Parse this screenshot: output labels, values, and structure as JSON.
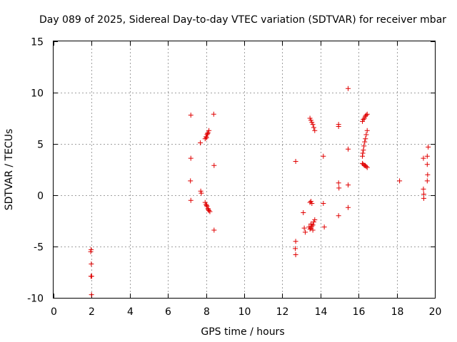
{
  "chart_data": {
    "type": "scatter",
    "title": "Day 089 of 2025, Sidereal Day-to-day VTEC variation (SDTVAR) for receiver mbar",
    "xlabel": "GPS time / hours",
    "ylabel": "SDTVAR / TECUs",
    "xlim": [
      0,
      20
    ],
    "ylim": [
      -10,
      15
    ],
    "xticks": [
      "0",
      "2",
      "4",
      "6",
      "8",
      "10",
      "12",
      "14",
      "16",
      "18",
      "20"
    ],
    "yticks": [
      "-10",
      "-5",
      "0",
      "5",
      "10",
      "15"
    ],
    "grid": true,
    "marker": "+",
    "color": "#e00000",
    "series": [
      {
        "name": "SDTVAR",
        "points": [
          [
            1.95,
            -5.5
          ],
          [
            1.97,
            -5.3
          ],
          [
            1.98,
            -6.7
          ],
          [
            1.96,
            -7.9
          ],
          [
            2.0,
            -7.9
          ],
          [
            1.99,
            -9.7
          ],
          [
            7.2,
            7.8
          ],
          [
            7.2,
            3.6
          ],
          [
            7.18,
            1.4
          ],
          [
            7.2,
            -0.5
          ],
          [
            7.7,
            5.1
          ],
          [
            7.72,
            0.4
          ],
          [
            7.75,
            0.2
          ],
          [
            7.95,
            5.5
          ],
          [
            8.0,
            5.7
          ],
          [
            8.05,
            5.9
          ],
          [
            8.1,
            6.1
          ],
          [
            8.15,
            6.3
          ],
          [
            8.02,
            5.6
          ],
          [
            8.08,
            6.0
          ],
          [
            7.95,
            -0.7
          ],
          [
            8.0,
            -0.9
          ],
          [
            8.05,
            -1.1
          ],
          [
            8.1,
            -1.3
          ],
          [
            8.15,
            -1.5
          ],
          [
            8.2,
            -1.6
          ],
          [
            8.03,
            -1.0
          ],
          [
            8.12,
            -1.4
          ],
          [
            8.4,
            7.9
          ],
          [
            8.42,
            2.9
          ],
          [
            8.42,
            -3.4
          ],
          [
            12.7,
            3.3
          ],
          [
            12.7,
            -4.5
          ],
          [
            12.68,
            -5.2
          ],
          [
            12.7,
            -5.8
          ],
          [
            13.1,
            -1.7
          ],
          [
            13.15,
            -3.2
          ],
          [
            13.2,
            -3.6
          ],
          [
            13.45,
            7.5
          ],
          [
            13.5,
            7.3
          ],
          [
            13.55,
            7.1
          ],
          [
            13.6,
            6.9
          ],
          [
            13.65,
            6.6
          ],
          [
            13.7,
            6.3
          ],
          [
            13.45,
            -0.7
          ],
          [
            13.5,
            -0.6
          ],
          [
            13.55,
            -0.8
          ],
          [
            13.4,
            -3.1
          ],
          [
            13.45,
            -3.3
          ],
          [
            13.5,
            -3.2
          ],
          [
            13.55,
            -3.0
          ],
          [
            13.6,
            -2.9
          ],
          [
            13.65,
            -2.6
          ],
          [
            13.7,
            -2.4
          ],
          [
            13.5,
            -2.8
          ],
          [
            13.6,
            -3.4
          ],
          [
            14.15,
            3.8
          ],
          [
            14.15,
            -0.8
          ],
          [
            14.2,
            -3.1
          ],
          [
            14.95,
            6.9
          ],
          [
            14.95,
            6.7
          ],
          [
            14.95,
            1.2
          ],
          [
            14.97,
            0.7
          ],
          [
            14.95,
            -2.0
          ],
          [
            15.45,
            10.4
          ],
          [
            15.45,
            4.5
          ],
          [
            15.45,
            1.0
          ],
          [
            15.45,
            -1.2
          ],
          [
            16.2,
            7.2
          ],
          [
            16.25,
            7.4
          ],
          [
            16.3,
            7.5
          ],
          [
            16.35,
            7.7
          ],
          [
            16.4,
            7.8
          ],
          [
            16.45,
            7.9
          ],
          [
            16.2,
            3.8
          ],
          [
            16.22,
            4.1
          ],
          [
            16.25,
            4.4
          ],
          [
            16.28,
            4.8
          ],
          [
            16.32,
            5.2
          ],
          [
            16.36,
            5.5
          ],
          [
            16.4,
            5.9
          ],
          [
            16.45,
            6.3
          ],
          [
            16.2,
            3.1
          ],
          [
            16.25,
            3.0
          ],
          [
            16.3,
            2.9
          ],
          [
            16.35,
            2.9
          ],
          [
            16.4,
            2.8
          ],
          [
            16.45,
            2.7
          ],
          [
            18.15,
            1.4
          ],
          [
            19.4,
            3.6
          ],
          [
            19.4,
            0.6
          ],
          [
            19.42,
            0.1
          ],
          [
            19.42,
            -0.3
          ],
          [
            19.65,
            4.7
          ],
          [
            19.6,
            3.8
          ],
          [
            19.6,
            3.0
          ],
          [
            19.62,
            2.0
          ],
          [
            19.6,
            1.4
          ]
        ]
      }
    ]
  }
}
